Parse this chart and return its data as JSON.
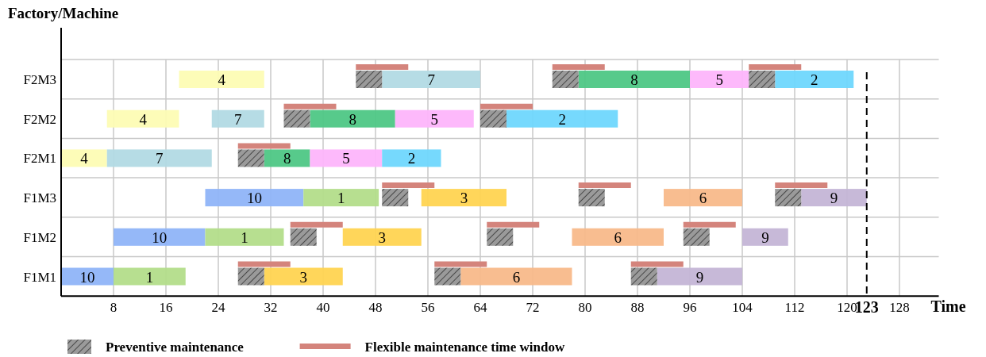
{
  "chart_data": {
    "type": "bar",
    "orientation": "horizontal",
    "ylabel": "Factory/Machine",
    "xlabel": "Time",
    "categories": [
      "F2M3",
      "F2M2",
      "F2M1",
      "F1M3",
      "F1M2",
      "F1M1"
    ],
    "xlim": [
      0,
      134
    ],
    "xticks": [
      8,
      16,
      24,
      32,
      40,
      48,
      56,
      64,
      72,
      80,
      88,
      96,
      104,
      112,
      120,
      128
    ],
    "grid": true,
    "legend": "bottom",
    "ref_lines": [
      {
        "axis": "x",
        "value": 123,
        "label": "123",
        "line_style": "dashed",
        "color": "#000000"
      }
    ],
    "series": [
      {
        "name": "4",
        "type": "bar",
        "color": "#fdfcb4",
        "base": [
          18,
          7,
          0,
          null,
          null,
          null
        ],
        "values": [
          13,
          11,
          7,
          null,
          null,
          null
        ]
      },
      {
        "name": "7",
        "type": "bar",
        "color": "#b2dae4",
        "base": [
          49,
          23,
          7,
          null,
          null,
          null
        ],
        "values": [
          15,
          8,
          16,
          null,
          null,
          null
        ]
      },
      {
        "name": "8",
        "type": "bar",
        "color": "#4ec785",
        "base": [
          79,
          38,
          31,
          null,
          null,
          null
        ],
        "values": [
          17,
          13,
          7,
          null,
          null,
          null
        ]
      },
      {
        "name": "5",
        "type": "bar",
        "color": "#fdb5fb",
        "base": [
          96,
          51,
          38,
          null,
          null,
          null
        ],
        "values": [
          9,
          12,
          11,
          null,
          null,
          null
        ]
      },
      {
        "name": "2",
        "type": "bar",
        "color": "#6fd7fd",
        "base": [
          109,
          68,
          49,
          null,
          null,
          null
        ],
        "values": [
          12,
          17,
          9,
          null,
          null,
          null
        ]
      },
      {
        "name": "10",
        "type": "bar",
        "color": "#8fb4f8",
        "base": [
          null,
          null,
          null,
          22,
          8,
          0
        ],
        "values": [
          null,
          null,
          null,
          15,
          14,
          8
        ]
      },
      {
        "name": "1",
        "type": "bar",
        "color": "#b3dd8a",
        "base": [
          null,
          null,
          null,
          37,
          22,
          8
        ],
        "values": [
          null,
          null,
          null,
          11.5,
          12,
          11
        ]
      },
      {
        "name": "3",
        "type": "bar",
        "color": "#ffd451",
        "base": [
          null,
          null,
          null,
          55,
          43,
          31
        ],
        "values": [
          null,
          null,
          null,
          13,
          12,
          12
        ]
      },
      {
        "name": "6",
        "type": "bar",
        "color": "#f8b98a",
        "base": [
          null,
          null,
          null,
          92,
          78,
          61
        ],
        "values": [
          null,
          null,
          null,
          12,
          14,
          17
        ]
      },
      {
        "name": "9",
        "type": "bar",
        "color": "#c4b5d6",
        "base": [
          null,
          null,
          null,
          113,
          104,
          91
        ],
        "values": [
          null,
          null,
          null,
          10,
          7,
          13
        ]
      },
      {
        "name": "Preventive maintenance",
        "type": "bar",
        "marker": "cross",
        "color": "#9a9a9a",
        "base": [
          45,
          34,
          27,
          49,
          35,
          27
        ],
        "values": [
          4,
          4,
          4,
          4,
          4,
          4
        ]
      },
      {
        "type": "bar",
        "marker": "cross",
        "color": "#9a9a9a",
        "base": [
          75,
          64,
          null,
          79,
          65,
          57
        ],
        "values": [
          4,
          4,
          null,
          4,
          4,
          4
        ]
      },
      {
        "type": "bar",
        "marker": "cross",
        "color": "#9a9a9a",
        "base": [
          105,
          null,
          null,
          109,
          95,
          87
        ],
        "values": [
          4,
          null,
          null,
          4,
          4,
          4
        ]
      },
      {
        "name": "Flexible maintenance time window",
        "type": "bar",
        "line_style": "solid",
        "color": "#d4847c",
        "base": [
          45,
          34,
          27,
          49,
          35,
          27
        ],
        "values": [
          8,
          8,
          8,
          8,
          8,
          8
        ]
      },
      {
        "type": "bar",
        "line_style": "solid",
        "color": "#d4847c",
        "base": [
          75,
          64,
          null,
          79,
          65,
          57
        ],
        "values": [
          8,
          8,
          null,
          8,
          8,
          8
        ]
      },
      {
        "type": "bar",
        "line_style": "solid",
        "color": "#d4847c",
        "base": [
          105,
          null,
          null,
          109,
          95,
          87
        ],
        "values": [
          8,
          null,
          null,
          8,
          8,
          8
        ]
      }
    ]
  }
}
